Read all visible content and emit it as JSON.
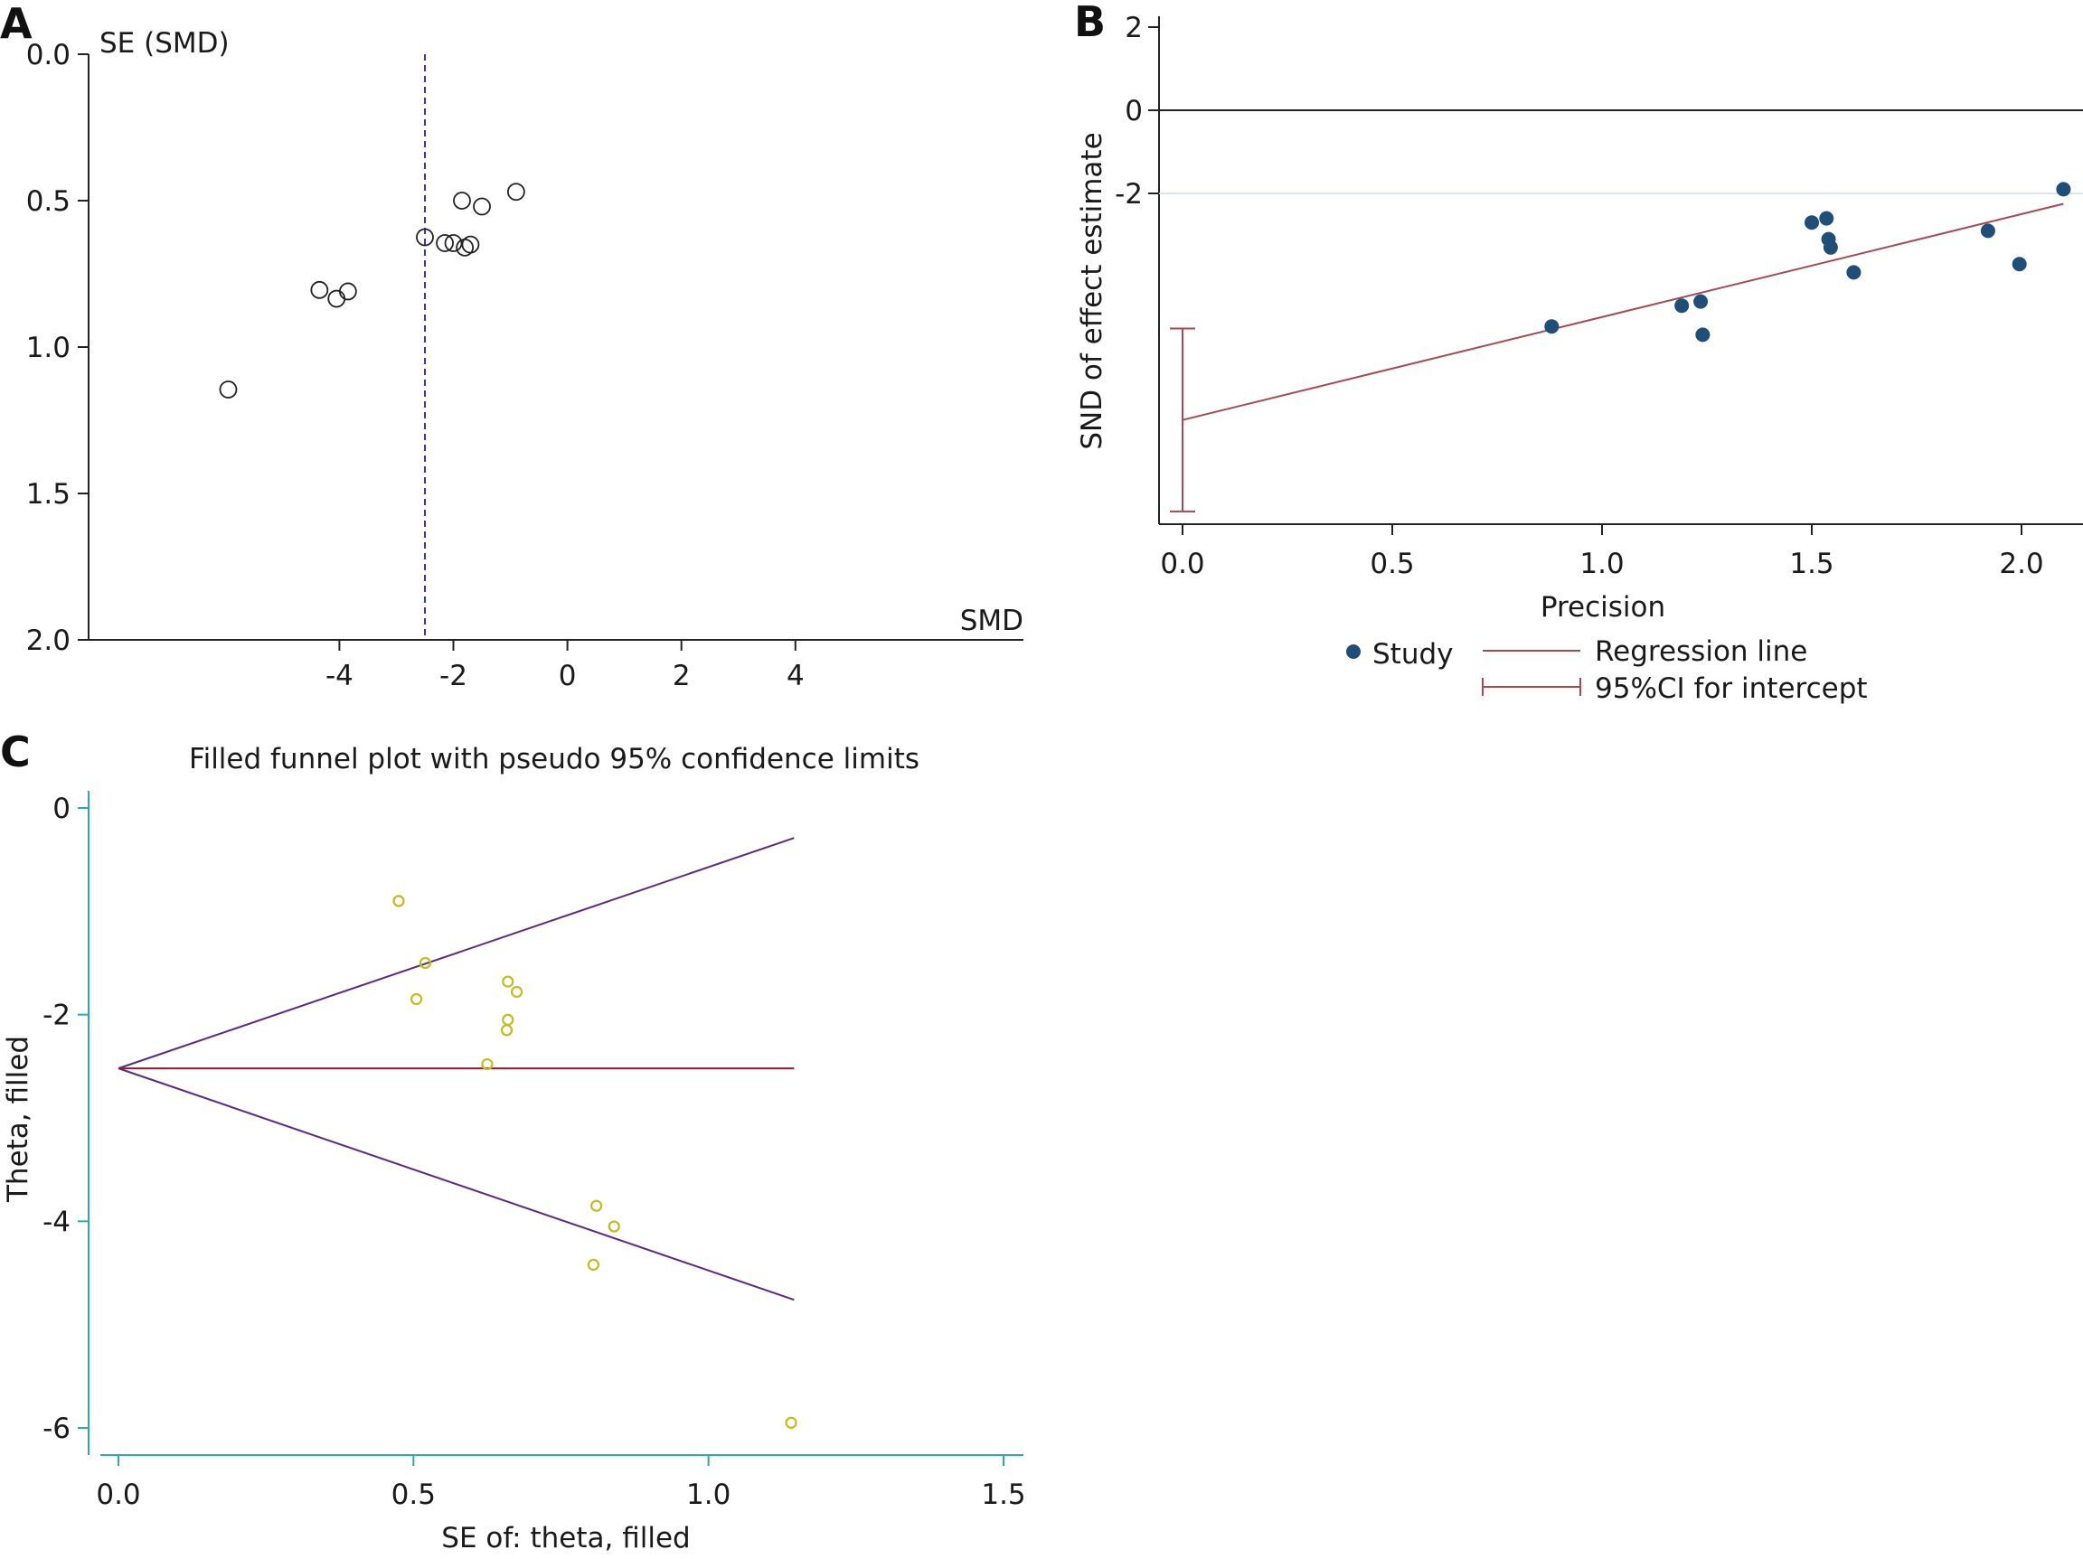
{
  "panels": {
    "a": {
      "letter": "A"
    },
    "b": {
      "letter": "B"
    },
    "c": {
      "letter": "C"
    }
  },
  "chart_data": [
    {
      "id": "A",
      "type": "scatter",
      "title": "",
      "xlabel": "SMD",
      "ylabel": "SE (SMD)",
      "xlim": [
        -8.4,
        8.0
      ],
      "ylim": [
        2.0,
        0.0
      ],
      "y_inverted": true,
      "xticks": [
        -4,
        -2,
        0,
        2,
        4
      ],
      "xtick_labels": [
        "-4",
        "-2",
        "0",
        "2",
        "4"
      ],
      "yticks": [
        0.0,
        0.5,
        1.0,
        1.5,
        2.0
      ],
      "ytick_labels": [
        "0.0",
        "0.5",
        "1.0",
        "1.5",
        "2.0"
      ],
      "reference_line": {
        "x": -2.5,
        "style": "dashed",
        "color": "#3333cc"
      },
      "series": [
        {
          "marker": "open-circle",
          "color": "#222222",
          "points": [
            {
              "x": -0.9,
              "y": 0.47
            },
            {
              "x": -1.85,
              "y": 0.5
            },
            {
              "x": -1.5,
              "y": 0.52
            },
            {
              "x": -2.5,
              "y": 0.625
            },
            {
              "x": -2.15,
              "y": 0.645
            },
            {
              "x": -2.0,
              "y": 0.645
            },
            {
              "x": -1.7,
              "y": 0.65
            },
            {
              "x": -1.8,
              "y": 0.66
            },
            {
              "x": -4.35,
              "y": 0.805
            },
            {
              "x": -3.85,
              "y": 0.81
            },
            {
              "x": -4.05,
              "y": 0.835
            },
            {
              "x": -5.95,
              "y": 1.145
            }
          ]
        }
      ]
    },
    {
      "id": "B",
      "type": "scatter",
      "title": "",
      "xlabel": "Precision",
      "ylabel": "SND of effect estimate",
      "xlim": [
        -0.06,
        2.15
      ],
      "ylim": [
        -10.0,
        2.2
      ],
      "xticks": [
        0.0,
        0.5,
        1.0,
        1.5,
        2.0
      ],
      "xtick_labels": [
        "0.0",
        "0.5",
        "1.0",
        "1.5",
        "2.0"
      ],
      "yticks": [
        2,
        0,
        -2
      ],
      "ytick_labels": [
        "2",
        "0",
        "-2"
      ],
      "reference_line": {
        "y": 0,
        "color": "#222222"
      },
      "grid_line": {
        "y": -2,
        "color": "#c8e0e6"
      },
      "series": [
        {
          "name": "Study",
          "marker": "filled-circle",
          "color": "#1f4e79",
          "points": [
            {
              "x": 0.88,
              "y": -5.2
            },
            {
              "x": 1.19,
              "y": -4.7
            },
            {
              "x": 1.235,
              "y": -4.6
            },
            {
              "x": 1.24,
              "y": -5.4
            },
            {
              "x": 1.5,
              "y": -2.7
            },
            {
              "x": 1.535,
              "y": -2.6
            },
            {
              "x": 1.54,
              "y": -3.1
            },
            {
              "x": 1.545,
              "y": -3.3
            },
            {
              "x": 1.6,
              "y": -3.9
            },
            {
              "x": 1.92,
              "y": -2.9
            },
            {
              "x": 1.995,
              "y": -3.7
            },
            {
              "x": 2.1,
              "y": -1.9
            }
          ]
        }
      ],
      "regression_line": {
        "name": "Regression line",
        "color": "#a34a52",
        "x": [
          0.0,
          2.1
        ],
        "y": [
          -7.45,
          -2.25
        ]
      },
      "intercept_ci": {
        "name": "95%CI for intercept",
        "color": "#a34a52",
        "x": 0.0,
        "low": -9.65,
        "high": -5.25
      },
      "legend_position": "bottom"
    },
    {
      "id": "C",
      "type": "scatter",
      "title": "Filled funnel plot with pseudo 95% confidence limits",
      "xlabel": "SE of: theta, filled",
      "ylabel": "Theta, filled",
      "xlim": [
        -0.07,
        1.53
      ],
      "ylim": [
        -6.3,
        0.2
      ],
      "xticks": [
        0.0,
        0.5,
        1.0,
        1.5
      ],
      "xtick_labels": [
        "0.0",
        "0.5",
        "1.0",
        "1.5"
      ],
      "yticks": [
        0,
        -2,
        -4,
        -6
      ],
      "ytick_labels": [
        "0",
        "-2",
        "-4",
        "-6"
      ],
      "axis_color": "#2aaaa8",
      "pooled_line": {
        "y": -2.52,
        "x": [
          0.0,
          1.145
        ],
        "color": "#9b1b2a"
      },
      "confidence_limits": {
        "color": "#5b2a80",
        "upper": [
          [
            0.0,
            -2.52
          ],
          [
            1.145,
            -0.29
          ]
        ],
        "lower": [
          [
            0.0,
            -2.52
          ],
          [
            1.145,
            -4.76
          ]
        ]
      },
      "series": [
        {
          "marker": "open-circle-small",
          "color": "#c2bd1a",
          "points": [
            {
              "x": 0.475,
              "y": -0.9
            },
            {
              "x": 0.52,
              "y": -1.5
            },
            {
              "x": 0.505,
              "y": -1.85
            },
            {
              "x": 0.66,
              "y": -1.68
            },
            {
              "x": 0.675,
              "y": -1.78
            },
            {
              "x": 0.66,
              "y": -2.05
            },
            {
              "x": 0.658,
              "y": -2.15
            },
            {
              "x": 0.625,
              "y": -2.48
            },
            {
              "x": 0.81,
              "y": -3.85
            },
            {
              "x": 0.84,
              "y": -4.05
            },
            {
              "x": 0.805,
              "y": -4.42
            },
            {
              "x": 1.14,
              "y": -5.95
            }
          ]
        }
      ]
    }
  ]
}
